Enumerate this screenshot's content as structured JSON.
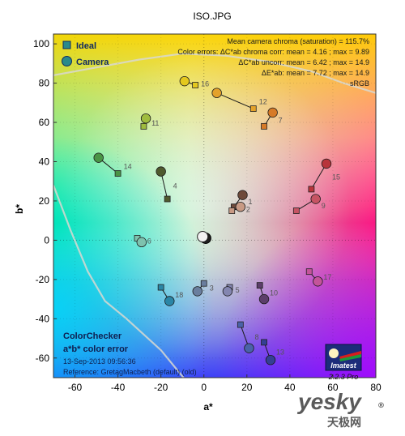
{
  "chart_data": {
    "type": "scatter",
    "title": "ISO.JPG",
    "xlabel": "a*",
    "ylabel": "b*",
    "xlim": [
      -70,
      80
    ],
    "ylim": [
      -70,
      105
    ],
    "xticks": [
      -60,
      -40,
      -20,
      0,
      20,
      40,
      60,
      80
    ],
    "yticks": [
      -60,
      -40,
      -20,
      0,
      20,
      40,
      60,
      80,
      100
    ],
    "grid": true,
    "legend": {
      "position": "top-left",
      "entries": [
        {
          "label": "Ideal",
          "marker": "square"
        },
        {
          "label": "Camera",
          "marker": "circle"
        }
      ]
    },
    "stats": [
      "Mean camera chroma (saturation) = 115.7%",
      "Color errors: ΔC*ab chroma corr:  mean = 4.16 ;  max = 9.89",
      "ΔC*ab uncorr:  mean = 6.42 ;  max = 14.9",
      "ΔE*ab:  mean = 7.72 ;  max = 14.9",
      "sRGB"
    ],
    "bottom_left": {
      "line1": "ColorChecker",
      "line2": "a*b* color error",
      "line3": "13-Sep-2013 09:56:36",
      "line4": "Reference: GretagMacbeth (default) (old)"
    },
    "logo": {
      "text": "Imatest",
      "version": "2.2.3  Pro"
    },
    "watermark": {
      "main": "yesky",
      "sub": "天极网",
      "suffix": "®"
    },
    "patches": [
      {
        "id": "1",
        "ideal": [
          14,
          17
        ],
        "camera": [
          18,
          23
        ],
        "color": "#6e4a3a"
      },
      {
        "id": "2",
        "ideal": [
          13,
          15
        ],
        "camera": [
          17,
          17
        ],
        "color": "#c89a84"
      },
      {
        "id": "3",
        "ideal": [
          0,
          -22
        ],
        "camera": [
          -3,
          -26
        ],
        "color": "#6a7e9e"
      },
      {
        "id": "4",
        "ideal": [
          -17,
          21
        ],
        "camera": [
          -20,
          35
        ],
        "color": "#4f5a2e"
      },
      {
        "id": "5",
        "ideal": [
          12,
          -24
        ],
        "camera": [
          11,
          -26
        ],
        "color": "#8486b0"
      },
      {
        "id": "6",
        "ideal": [
          -31,
          1
        ],
        "camera": [
          -29,
          -1
        ],
        "color": "#7ec2ae"
      },
      {
        "id": "7",
        "ideal": [
          28,
          58
        ],
        "camera": [
          32,
          65
        ],
        "color": "#d67a28"
      },
      {
        "id": "8",
        "ideal": [
          17,
          -43
        ],
        "camera": [
          21,
          -55
        ],
        "color": "#4a62a8"
      },
      {
        "id": "9",
        "ideal": [
          43,
          15
        ],
        "camera": [
          52,
          21
        ],
        "color": "#c65464"
      },
      {
        "id": "10",
        "ideal": [
          26,
          -23
        ],
        "camera": [
          28,
          -30
        ],
        "color": "#5c3e6a"
      },
      {
        "id": "11",
        "ideal": [
          -28,
          58
        ],
        "camera": [
          -27,
          62
        ],
        "color": "#9fbc3e"
      },
      {
        "id": "12",
        "ideal": [
          23,
          67
        ],
        "camera": [
          6,
          75
        ],
        "color": "#e4a22a"
      },
      {
        "id": "13",
        "ideal": [
          28,
          -52
        ],
        "camera": [
          31,
          -61
        ],
        "color": "#343f94"
      },
      {
        "id": "14",
        "ideal": [
          -40,
          34
        ],
        "camera": [
          -49,
          42
        ],
        "color": "#4a9446"
      },
      {
        "id": "15",
        "ideal": [
          50,
          26
        ],
        "camera": [
          57,
          39
        ],
        "color": "#b8343a"
      },
      {
        "id": "16",
        "ideal": [
          -4,
          79
        ],
        "camera": [
          -9,
          81
        ],
        "color": "#e4c81e"
      },
      {
        "id": "17",
        "ideal": [
          49,
          -16
        ],
        "camera": [
          53,
          -21
        ],
        "color": "#c4549a"
      },
      {
        "id": "18",
        "ideal": [
          -20,
          -24
        ],
        "camera": [
          -16,
          -31
        ],
        "color": "#2a86a6"
      }
    ]
  }
}
